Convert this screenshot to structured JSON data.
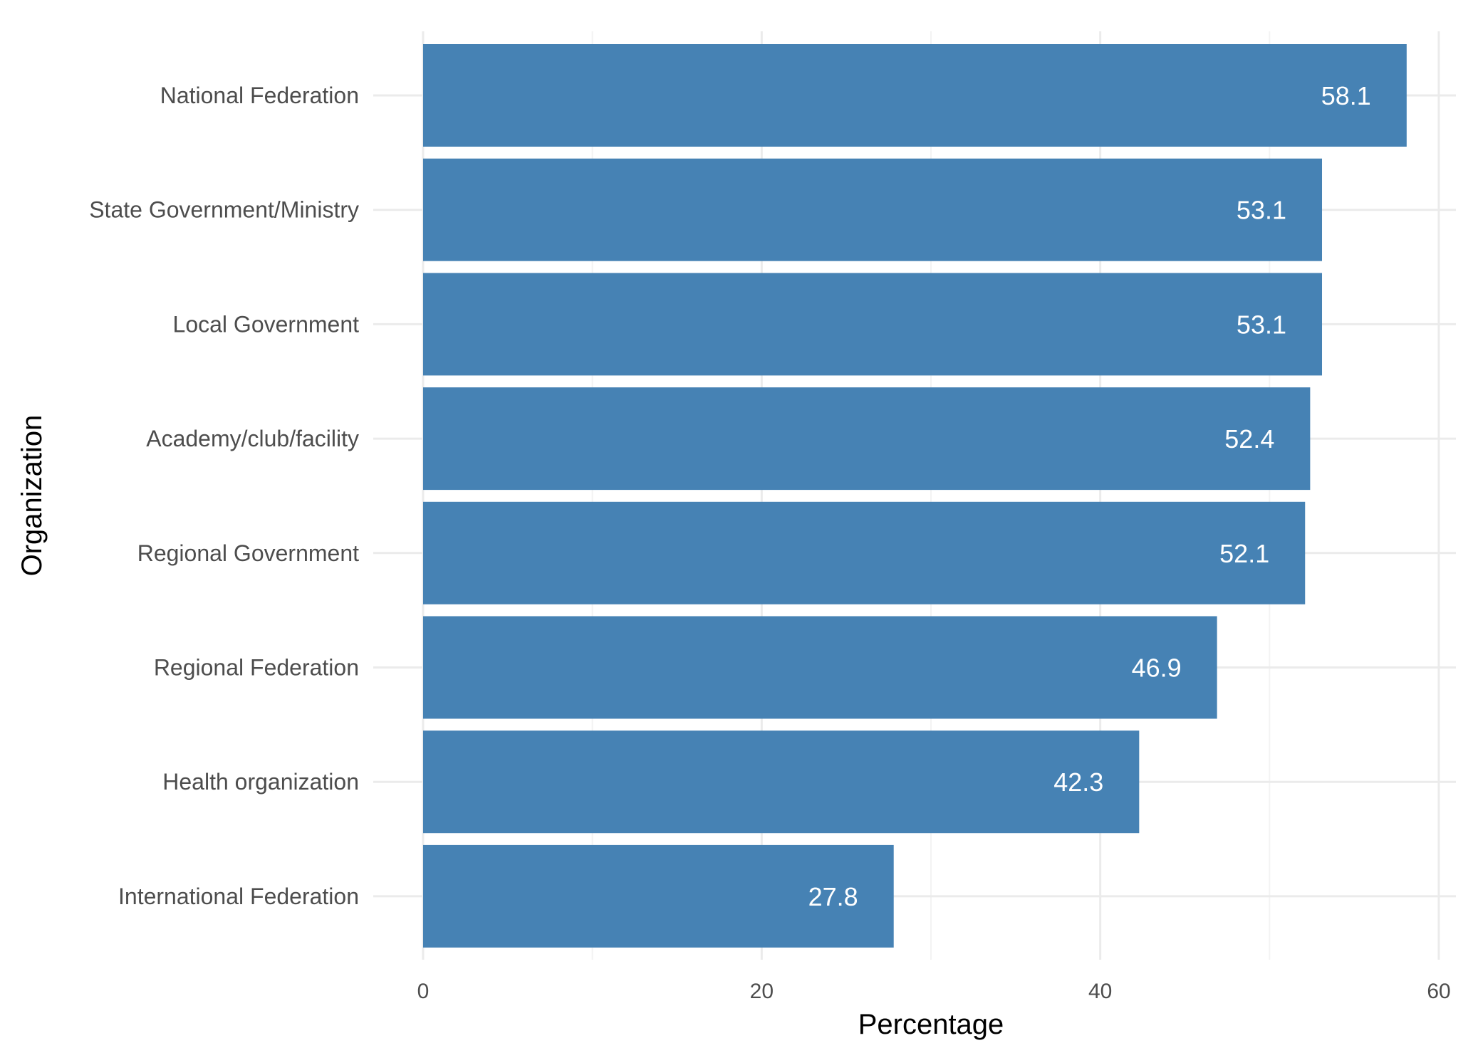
{
  "chart_data": {
    "type": "bar",
    "orientation": "horizontal",
    "categories": [
      "National Federation",
      "State Government/Ministry",
      "Local Government",
      "Academy/club/facility",
      "Regional Government",
      "Regional Federation",
      "Health organization",
      "International Federation"
    ],
    "values": [
      58.1,
      53.1,
      53.1,
      52.4,
      52.1,
      46.9,
      42.3,
      27.8
    ],
    "value_labels": [
      "58.1",
      "53.1",
      "53.1",
      "52.4",
      "52.1",
      "46.9",
      "42.3",
      "27.8"
    ],
    "xlabel": "Percentage",
    "ylabel": "Organization",
    "xlim": [
      0,
      60
    ],
    "x_ticks": [
      0,
      20,
      40,
      60
    ],
    "x_tick_labels": [
      "0",
      "20",
      "40",
      "60"
    ],
    "grid": true,
    "legend": "none",
    "colors": {
      "bar": "#4682B4",
      "grid_major": "#ebebeb",
      "grid_minor": "#f3f3f3",
      "background": "#ffffff"
    }
  }
}
